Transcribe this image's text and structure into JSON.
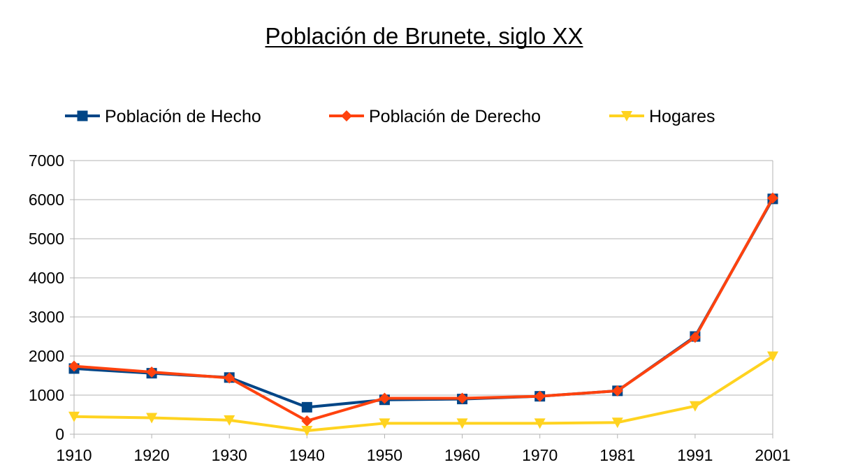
{
  "chart_data": {
    "type": "line",
    "title": "Población de Brunete, siglo XX",
    "xlabel": "",
    "ylabel": "",
    "categories": [
      "1910",
      "1920",
      "1930",
      "1940",
      "1950",
      "1960",
      "1970",
      "1981",
      "1991",
      "2001"
    ],
    "ylim": [
      0,
      7000
    ],
    "yticks": [
      "0",
      "1000",
      "2000",
      "3000",
      "4000",
      "5000",
      "6000",
      "7000"
    ],
    "grid": true,
    "legend_position": "top",
    "series": [
      {
        "name": "Población de Hecho",
        "color": "#004586",
        "marker": "square",
        "values": [
          1680,
          1560,
          1450,
          690,
          880,
          900,
          970,
          1110,
          2500,
          6020
        ]
      },
      {
        "name": "Población de Derecho",
        "color": "#ff420e",
        "marker": "diamond",
        "values": [
          1740,
          1590,
          1440,
          340,
          920,
          920,
          970,
          1110,
          2480,
          6040
        ]
      },
      {
        "name": "Hogares",
        "color": "#ffd320",
        "marker": "triangle-down",
        "values": [
          450,
          420,
          360,
          90,
          280,
          280,
          280,
          300,
          720,
          1990
        ]
      }
    ]
  }
}
